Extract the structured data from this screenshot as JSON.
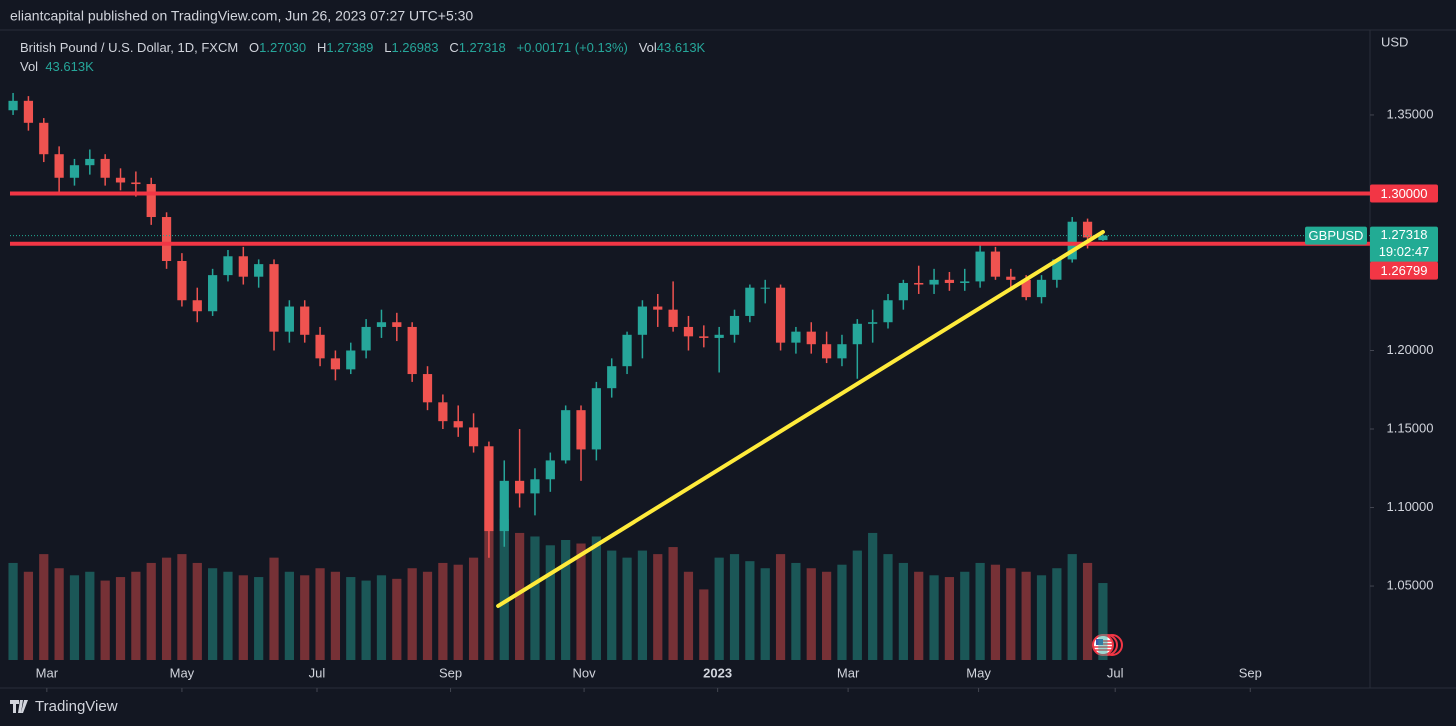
{
  "header": {
    "publisher": "eliantcapital published on TradingView.com, Jun 26, 2023 07:27 UTC+5:30",
    "brand": "TradingView"
  },
  "chart_data": {
    "type": "candlestick",
    "title": "British Pound / U.S. Dollar, 1D, FXCM",
    "ohlc_legend": {
      "o_label": "O",
      "open": "1.27030",
      "h_label": "H",
      "high": "1.27389",
      "l_label": "L",
      "low": "1.26983",
      "c_label": "C",
      "close": "1.27318",
      "change": "+0.00171 (+0.13%)",
      "vol_label": "Vol",
      "vol": "43.613K"
    },
    "volume_legend": {
      "label": "Vol",
      "value": "43.613K"
    },
    "currency": "USD",
    "up_color": "#26a69a",
    "down_color": "#ef5350",
    "x": [
      0,
      1,
      2,
      3,
      4,
      5,
      6,
      7,
      8,
      9,
      10,
      11,
      12,
      13,
      14,
      15,
      16,
      17,
      18,
      19,
      20,
      21,
      22,
      23,
      24,
      25,
      26,
      27,
      28,
      29,
      30,
      31,
      32,
      33,
      34,
      35,
      36,
      37,
      38,
      39,
      40,
      41,
      42,
      43,
      44,
      45,
      46,
      47,
      48,
      49,
      50,
      51,
      52,
      53,
      54,
      55,
      56,
      57,
      58,
      59,
      60,
      61,
      62,
      63,
      64,
      65,
      66,
      67,
      68,
      69,
      70,
      71
    ],
    "open": [
      1.353,
      1.359,
      1.345,
      1.325,
      1.31,
      1.318,
      1.322,
      1.31,
      1.307,
      1.306,
      1.285,
      1.257,
      1.232,
      1.225,
      1.248,
      1.26,
      1.247,
      1.255,
      1.212,
      1.228,
      1.21,
      1.195,
      1.188,
      1.2,
      1.215,
      1.218,
      1.215,
      1.185,
      1.167,
      1.155,
      1.151,
      1.139,
      1.085,
      1.117,
      1.109,
      1.118,
      1.13,
      1.162,
      1.137,
      1.176,
      1.19,
      1.21,
      1.228,
      1.226,
      1.215,
      1.209,
      1.208,
      1.21,
      1.222,
      1.24,
      1.24,
      1.205,
      1.212,
      1.204,
      1.195,
      1.204,
      1.217,
      1.218,
      1.232,
      1.243,
      1.242,
      1.245,
      1.243,
      1.244,
      1.263,
      1.247,
      1.245,
      1.234,
      1.245,
      1.258,
      1.282,
      1.2703
    ],
    "high": [
      1.364,
      1.362,
      1.348,
      1.33,
      1.322,
      1.328,
      1.325,
      1.316,
      1.314,
      1.31,
      1.288,
      1.262,
      1.24,
      1.252,
      1.264,
      1.266,
      1.258,
      1.258,
      1.232,
      1.232,
      1.215,
      1.2,
      1.205,
      1.22,
      1.226,
      1.224,
      1.218,
      1.19,
      1.172,
      1.165,
      1.16,
      1.142,
      1.13,
      1.15,
      1.125,
      1.135,
      1.165,
      1.165,
      1.18,
      1.195,
      1.212,
      1.232,
      1.236,
      1.244,
      1.222,
      1.216,
      1.215,
      1.226,
      1.242,
      1.245,
      1.242,
      1.215,
      1.218,
      1.212,
      1.21,
      1.22,
      1.226,
      1.236,
      1.245,
      1.254,
      1.252,
      1.25,
      1.252,
      1.268,
      1.266,
      1.252,
      1.248,
      1.248,
      1.258,
      1.285,
      1.284,
      1.27389
    ],
    "low": [
      1.35,
      1.34,
      1.32,
      1.3,
      1.305,
      1.312,
      1.305,
      1.302,
      1.298,
      1.28,
      1.252,
      1.228,
      1.218,
      1.222,
      1.244,
      1.242,
      1.24,
      1.2,
      1.205,
      1.205,
      1.19,
      1.181,
      1.185,
      1.195,
      1.208,
      1.206,
      1.18,
      1.162,
      1.15,
      1.145,
      1.135,
      1.068,
      1.075,
      1.1,
      1.095,
      1.11,
      1.128,
      1.117,
      1.13,
      1.17,
      1.185,
      1.195,
      1.215,
      1.212,
      1.2,
      1.202,
      1.186,
      1.205,
      1.218,
      1.23,
      1.2,
      1.198,
      1.198,
      1.192,
      1.19,
      1.182,
      1.205,
      1.214,
      1.226,
      1.236,
      1.236,
      1.238,
      1.238,
      1.24,
      1.245,
      1.238,
      1.232,
      1.23,
      1.24,
      1.256,
      1.265,
      1.26983
    ],
    "close": [
      1.359,
      1.345,
      1.325,
      1.31,
      1.318,
      1.322,
      1.31,
      1.307,
      1.306,
      1.285,
      1.257,
      1.232,
      1.225,
      1.248,
      1.26,
      1.247,
      1.255,
      1.212,
      1.228,
      1.21,
      1.195,
      1.188,
      1.2,
      1.215,
      1.218,
      1.215,
      1.185,
      1.167,
      1.155,
      1.151,
      1.139,
      1.085,
      1.117,
      1.109,
      1.118,
      1.13,
      1.162,
      1.137,
      1.176,
      1.19,
      1.21,
      1.228,
      1.226,
      1.215,
      1.209,
      1.208,
      1.21,
      1.222,
      1.24,
      1.24,
      1.205,
      1.212,
      1.204,
      1.195,
      1.204,
      1.217,
      1.218,
      1.232,
      1.243,
      1.242,
      1.245,
      1.243,
      1.244,
      1.263,
      1.247,
      1.245,
      1.234,
      1.245,
      1.258,
      1.282,
      1.272,
      1.27318
    ],
    "volume": [
      55,
      50,
      60,
      52,
      48,
      50,
      45,
      47,
      50,
      55,
      58,
      60,
      55,
      52,
      50,
      48,
      47,
      58,
      50,
      48,
      52,
      50,
      47,
      45,
      48,
      46,
      52,
      50,
      55,
      54,
      58,
      85,
      80,
      72,
      70,
      65,
      68,
      66,
      70,
      62,
      58,
      62,
      60,
      64,
      50,
      40,
      58,
      60,
      56,
      52,
      60,
      55,
      52,
      50,
      54,
      62,
      72,
      60,
      55,
      50,
      48,
      47,
      50,
      55,
      54,
      52,
      50,
      48,
      52,
      60,
      55,
      43.613
    ],
    "xlim": [
      -0.2,
      88.4
    ],
    "xticks": [
      {
        "value": 2.2,
        "label": "Mar"
      },
      {
        "value": 11.0,
        "label": "May"
      },
      {
        "value": 19.8,
        "label": "Jul"
      },
      {
        "value": 28.5,
        "label": "Sep"
      },
      {
        "value": 37.2,
        "label": "Nov"
      },
      {
        "value": 45.9,
        "label": "2023"
      },
      {
        "value": 54.4,
        "label": "Mar"
      },
      {
        "value": 62.9,
        "label": "May"
      },
      {
        "value": 71.8,
        "label": "Jul"
      },
      {
        "value": 80.6,
        "label": "Sep"
      }
    ],
    "ylim": [
      1.0029,
      1.4041
    ],
    "yticks": [
      {
        "value": 1.35,
        "label": "1.35000"
      },
      {
        "value": 1.2,
        "label": "1.20000"
      },
      {
        "value": 1.15,
        "label": "1.15000"
      },
      {
        "value": 1.1,
        "label": "1.10000"
      },
      {
        "value": 1.05,
        "label": "1.05000"
      }
    ],
    "levels": [
      {
        "value": 1.3,
        "label": "1.30000",
        "color": "#f23645"
      },
      {
        "value": 1.26799,
        "label": "1.26799",
        "color": "#f23645"
      }
    ],
    "current": {
      "symbol": "GBPUSD",
      "value": 1.27318,
      "label": "1.27318",
      "countdown": "19:02:47",
      "color": "#22ab94"
    },
    "trendline": {
      "x": [
        31.6,
        71.0
      ],
      "y": [
        1.0373,
        1.2755
      ],
      "color": "#ffeb3b"
    }
  }
}
